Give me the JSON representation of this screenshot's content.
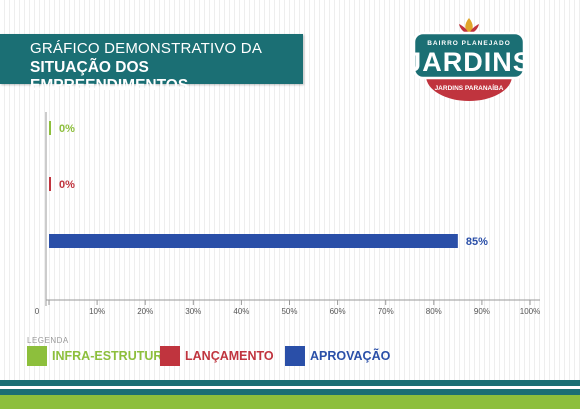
{
  "header": {
    "line1": "GRÁFICO DEMONSTRATIVO DA",
    "line2": "SITUAÇÃO DOS EMPREENDIMENTOS"
  },
  "logo": {
    "top_text": "BAIRRO PLANEJADO",
    "main_text": "JARDINS",
    "sub_text": "JARDINS PARANAÍBA"
  },
  "colors": {
    "teal": "#1b6f74",
    "green": "#8dbf3c",
    "red": "#c0343e",
    "blue": "#2a4fa8",
    "gold": "#e0a52a"
  },
  "chart_data": {
    "type": "bar",
    "orientation": "horizontal",
    "categories": [
      "INFRA-ESTRUTURA",
      "LANÇAMENTO",
      "APROVAÇÃO"
    ],
    "values": [
      0,
      0,
      85
    ],
    "value_labels": [
      "0%",
      "0%",
      "85%"
    ],
    "colors": [
      "#8dbf3c",
      "#c0343e",
      "#2a4fa8"
    ],
    "xlim": [
      0,
      100
    ],
    "x_ticks": [
      "0",
      "10%",
      "20%",
      "30%",
      "40%",
      "50%",
      "60%",
      "70%",
      "80%",
      "90%",
      "100%"
    ],
    "x_tick_values": [
      0,
      10,
      20,
      30,
      40,
      50,
      60,
      70,
      80,
      90,
      100
    ],
    "legend_title": "LEGENDA",
    "legend_position": "bottom-left"
  }
}
